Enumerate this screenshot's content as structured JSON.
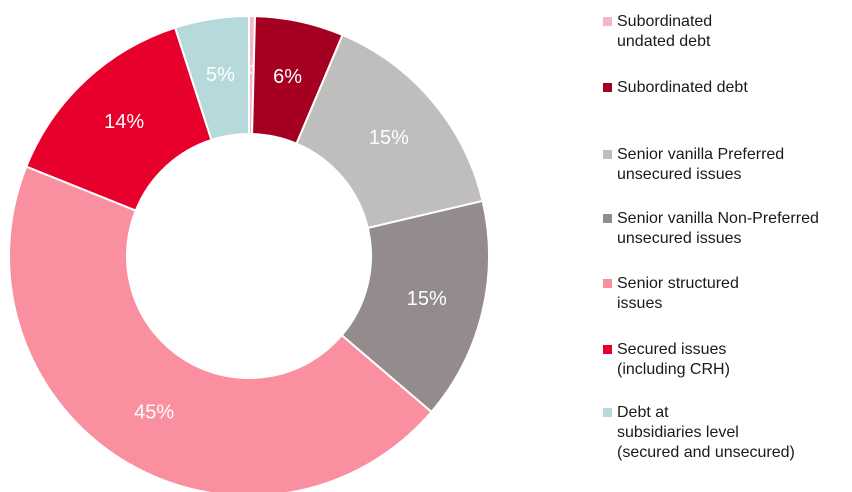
{
  "chart_data": {
    "type": "pie",
    "donut": true,
    "legend_position": "right",
    "slices": [
      {
        "name": "Subordinated\nundated debt",
        "value": 0,
        "label": "0%",
        "color": "#f7b6c6",
        "label_color": "#ffffff"
      },
      {
        "name": "Subordinated debt",
        "value": 6,
        "label": "6%",
        "color": "#a50021",
        "label_color": "#ffffff"
      },
      {
        "name": "Senior vanilla Preferred\nunsecured issues",
        "value": 15,
        "label": "15%",
        "color": "#c0bebd",
        "label_color": "#ffffff"
      },
      {
        "name": "Senior vanilla Non-Preferred\nunsecured issues",
        "value": 15,
        "label": "15%",
        "color": "#948c8c",
        "label_color": "#ffffff"
      },
      {
        "name": "Senior structured\nissues",
        "value": 45,
        "label": "45%",
        "color": "#fa8fa0",
        "label_color": "#ffffff"
      },
      {
        "name": "Secured issues\n(including CRH)",
        "value": 14,
        "label": "14%",
        "color": "#e8002c",
        "label_color": "#ffffff"
      },
      {
        "name": "Debt at\nsubsidiaries level\n(secured and unsecured)",
        "value": 5,
        "label": "5%",
        "color": "#b6d9dc",
        "label_color": "#ffffff"
      }
    ]
  }
}
